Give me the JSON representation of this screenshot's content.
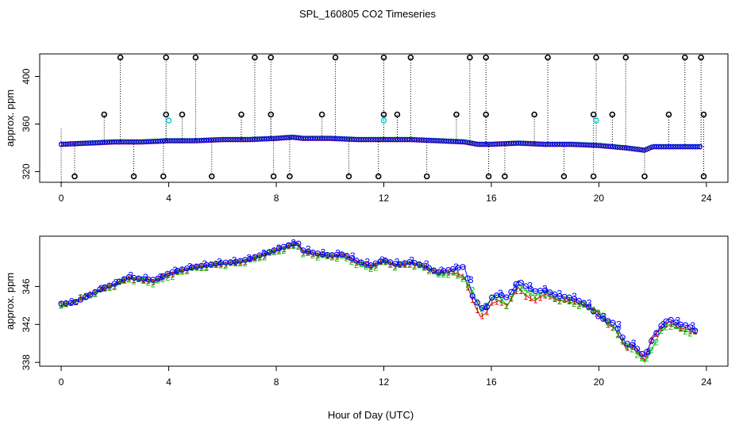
{
  "figure": {
    "title": "SPL_160805  CO2 Timeseries",
    "xlabel": "Hour of Day (UTC)"
  },
  "colors": {
    "series1": "#d00000",
    "series2": "#00c000",
    "series3": "#0000ff",
    "outlier": "#000000",
    "cyan": "#00cccc"
  },
  "chart_data": [
    {
      "type": "scatter",
      "title": "",
      "xlabel": "",
      "ylabel": "approx. ppm",
      "xlim": [
        -0.8,
        24.8
      ],
      "ylim": [
        311,
        419
      ],
      "xticks": [
        0,
        4,
        8,
        12,
        16,
        20,
        24
      ],
      "yticks": [
        320,
        360,
        400
      ],
      "baseline_series": [
        {
          "name": "1",
          "x": [
            0,
            1,
            2,
            3,
            4,
            5,
            6,
            7,
            8,
            8.6,
            9,
            10,
            11,
            12,
            13,
            14,
            15,
            15.5,
            16,
            17,
            18,
            19,
            20,
            21,
            21.7,
            22,
            23,
            23.8
          ],
          "y": [
            343,
            344,
            345,
            345,
            346,
            346,
            347,
            347,
            348,
            349,
            348,
            348,
            347,
            347,
            347,
            346,
            345,
            343,
            343,
            344,
            343,
            343,
            342,
            340,
            338,
            341,
            341,
            341
          ]
        }
      ],
      "outliers_top": [
        2.2,
        3.9,
        5.0,
        7.2,
        7.8,
        10.2,
        12.0,
        13.0,
        15.2,
        15.8,
        18.1,
        19.9,
        21.0,
        23.2,
        23.8
      ],
      "outliers_top_value": 416,
      "outliers_mid": [
        1.6,
        3.9,
        4.5,
        6.7,
        7.8,
        9.7,
        12.0,
        12.5,
        14.7,
        15.8,
        17.6,
        19.8,
        20.5,
        22.6,
        23.9
      ],
      "outliers_mid_value": 368,
      "outliers_low": [
        0.5,
        2.7,
        3.8,
        5.6,
        7.9,
        8.5,
        10.7,
        11.8,
        13.6,
        15.9,
        16.5,
        18.7,
        19.8,
        21.7,
        23.9
      ],
      "outliers_low_value": 316,
      "cyan_points": {
        "x": [
          4.0,
          12.0,
          19.9
        ],
        "y": [
          363,
          363,
          363
        ]
      }
    },
    {
      "type": "scatter",
      "title": "",
      "xlabel": "",
      "ylabel": "approx. ppm",
      "xlim": [
        -0.8,
        24.8
      ],
      "ylim": [
        337.6,
        351.3
      ],
      "xticks": [
        0,
        4,
        8,
        12,
        16,
        20,
        24
      ],
      "yticks": [
        338,
        342,
        346
      ],
      "series": [
        {
          "name": "1",
          "x": [
            0,
            0.5,
            1,
            1.5,
            2,
            2.5,
            3,
            3.5,
            4,
            4.5,
            5,
            5.5,
            6,
            6.5,
            7,
            7.5,
            8,
            8.5,
            8.8,
            9,
            9.5,
            10,
            10.5,
            11,
            11.5,
            12,
            12.5,
            13,
            13.5,
            14,
            14.5,
            15,
            15.3,
            15.6,
            15.8,
            16,
            16.3,
            16.6,
            17,
            17.3,
            17.6,
            18,
            18.5,
            19,
            19.5,
            20,
            20.3,
            20.6,
            21,
            21.3,
            21.7,
            22,
            22.3,
            22.6,
            23,
            23.3,
            23.7
          ],
          "y": [
            344.0,
            344.4,
            345.1,
            345.7,
            346.2,
            346.9,
            346.7,
            346.6,
            347.3,
            347.7,
            348.0,
            348.2,
            348.4,
            348.5,
            348.8,
            349.3,
            349.8,
            350.3,
            350.5,
            349.7,
            349.4,
            349.2,
            349.3,
            348.6,
            348.1,
            348.7,
            348.2,
            348.5,
            348.1,
            347.4,
            347.6,
            347.0,
            344.5,
            342.8,
            343.2,
            344.2,
            344.5,
            344.0,
            345.9,
            345.0,
            344.5,
            345.2,
            344.5,
            344.5,
            344.0,
            343.2,
            342.0,
            341.6,
            339.5,
            339.8,
            338.2,
            340.8,
            341.5,
            342.3,
            341.6,
            341.5,
            341.0
          ]
        },
        {
          "name": "2",
          "x": [
            0,
            0.5,
            1,
            1.5,
            2,
            2.5,
            3,
            3.5,
            4,
            4.5,
            5,
            5.5,
            6,
            6.5,
            7,
            7.5,
            8,
            8.5,
            8.8,
            9,
            9.5,
            10,
            10.5,
            11,
            11.5,
            12,
            12.5,
            13,
            13.5,
            14,
            14.5,
            15,
            15.3,
            15.6,
            15.8,
            16,
            16.3,
            16.6,
            17,
            17.3,
            17.6,
            18,
            18.5,
            19,
            19.5,
            20,
            20.3,
            20.6,
            21,
            21.3,
            21.7,
            22,
            22.3,
            22.6,
            23,
            23.3,
            23.7
          ],
          "y": [
            343.8,
            344.5,
            345.0,
            345.6,
            346.1,
            346.8,
            346.6,
            346.4,
            347.1,
            347.6,
            347.9,
            348.1,
            348.3,
            348.4,
            348.7,
            349.2,
            349.7,
            350.2,
            350.4,
            349.6,
            349.2,
            349.1,
            349.1,
            348.4,
            347.9,
            348.6,
            348.1,
            348.4,
            348.0,
            347.2,
            347.4,
            346.8,
            345.5,
            343.5,
            344.0,
            344.7,
            344.9,
            344.0,
            346.2,
            345.5,
            345.0,
            345.4,
            344.6,
            344.3,
            343.9,
            343.4,
            342.3,
            341.5,
            339.7,
            339.4,
            338.0,
            339.6,
            341.2,
            342.0,
            341.5,
            341.2,
            341.2
          ]
        },
        {
          "name": "3",
          "x": [
            0,
            0.5,
            1,
            1.5,
            2,
            2.5,
            3,
            3.5,
            4,
            4.5,
            5,
            5.5,
            6,
            6.5,
            7,
            7.5,
            8,
            8.5,
            8.8,
            9,
            9.5,
            10,
            10.5,
            11,
            11.5,
            12,
            12.5,
            13,
            13.5,
            14,
            14.5,
            15,
            15.3,
            15.6,
            15.8,
            16,
            16.3,
            16.6,
            17,
            17.3,
            17.6,
            18,
            18.5,
            19,
            19.5,
            20,
            20.3,
            20.6,
            21,
            21.3,
            21.7,
            22,
            22.3,
            22.6,
            23,
            23.3,
            23.7
          ],
          "y": [
            344.2,
            344.3,
            345.0,
            345.8,
            346.3,
            347.0,
            346.8,
            346.7,
            347.4,
            347.8,
            348.1,
            348.3,
            348.5,
            348.6,
            348.9,
            349.4,
            349.9,
            350.4,
            350.6,
            349.8,
            349.5,
            349.3,
            349.4,
            348.7,
            348.2,
            348.8,
            348.3,
            348.6,
            348.2,
            347.5,
            347.8,
            348.1,
            345.0,
            343.8,
            343.6,
            344.8,
            345.2,
            344.8,
            346.6,
            346.0,
            345.5,
            345.6,
            345.0,
            344.8,
            344.2,
            342.8,
            342.4,
            342.1,
            340.0,
            339.8,
            338.6,
            340.5,
            341.8,
            342.6,
            342.0,
            341.9,
            341.1
          ]
        }
      ]
    }
  ]
}
